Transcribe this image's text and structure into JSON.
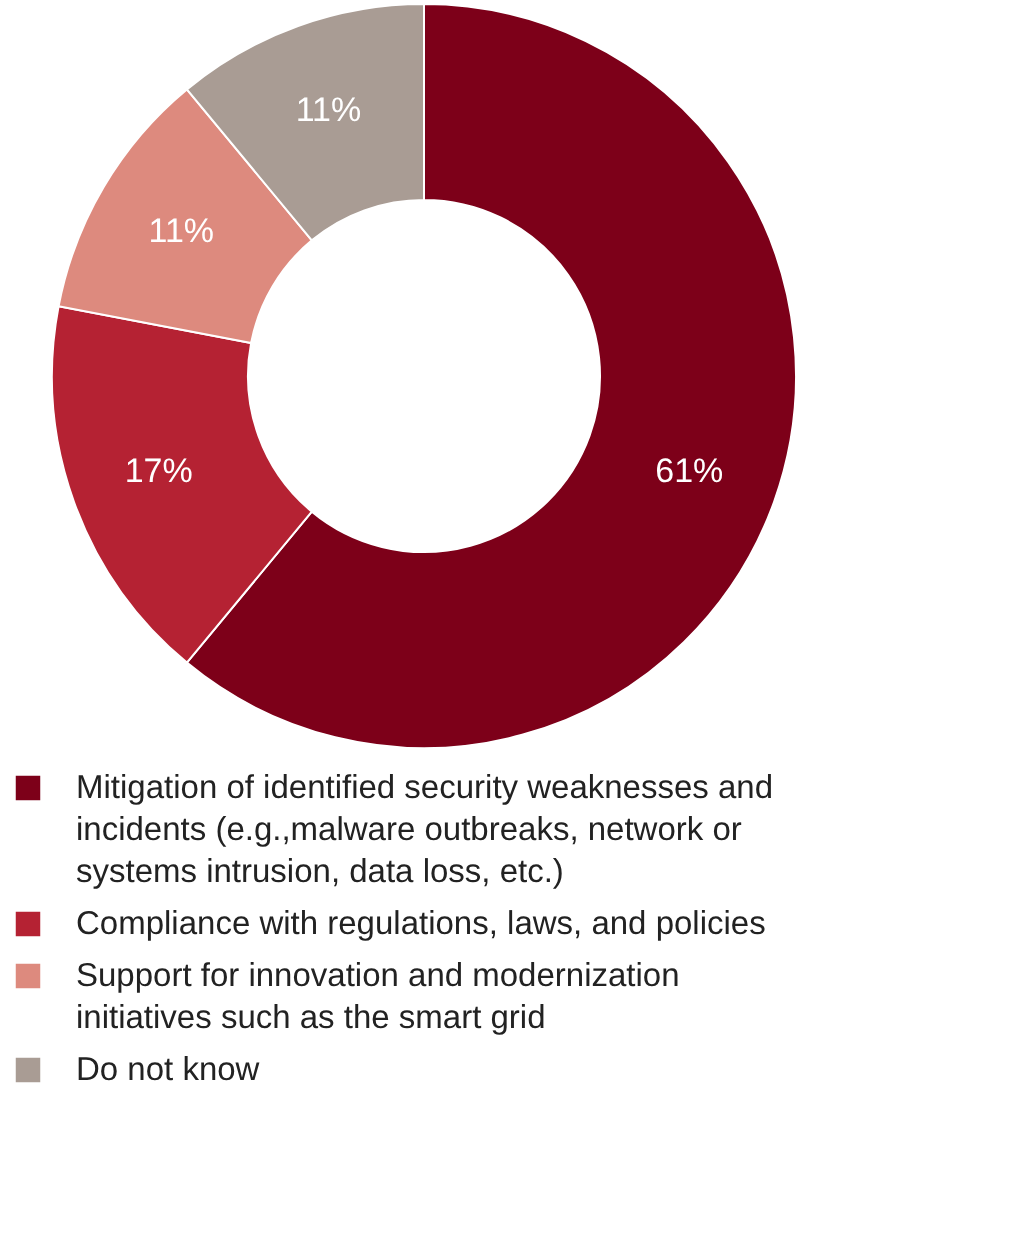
{
  "chart_data": {
    "type": "donut",
    "categories": [
      "Mitigation of identified security weaknesses and incidents (e.g.,malware outbreaks, network or systems intrusion, data loss, etc.)",
      "Compliance with regulations, laws, and policies",
      "Support for innovation and modernization initiatives such as the smart grid",
      "Do not know"
    ],
    "values": [
      61,
      17,
      11,
      11
    ],
    "colors": [
      "#7d0019",
      "#b52233",
      "#dd8a7e",
      "#a99c94"
    ],
    "value_labels": [
      "61%",
      "17%",
      "11%",
      "11%"
    ],
    "legend": "bottom"
  }
}
